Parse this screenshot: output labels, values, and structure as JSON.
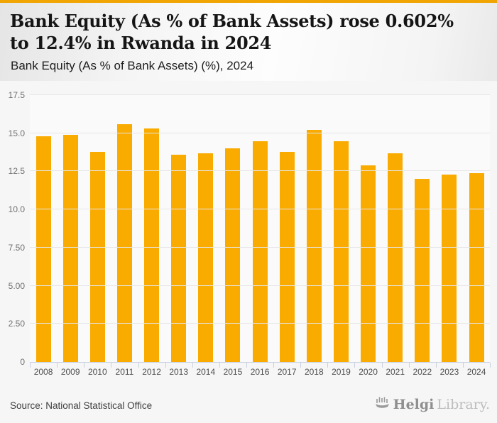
{
  "header": {
    "title": "Bank Equity (As % of Bank Assets) rose 0.602% to 12.4% in Rwanda in 2024",
    "subtitle": "Bank Equity (As % of Bank Assets) (%), 2024"
  },
  "chart_data": {
    "type": "bar",
    "title": "Bank Equity (As % of Bank Assets) (%), 2024",
    "categories": [
      "2008",
      "2009",
      "2010",
      "2011",
      "2012",
      "2013",
      "2014",
      "2015",
      "2016",
      "2017",
      "2018",
      "2019",
      "2020",
      "2021",
      "2022",
      "2023",
      "2024"
    ],
    "values": [
      14.8,
      14.9,
      13.8,
      15.6,
      15.3,
      13.6,
      13.7,
      14.0,
      14.5,
      13.8,
      15.2,
      14.5,
      12.9,
      13.7,
      12.0,
      12.3,
      12.4
    ],
    "xlabel": "",
    "ylabel": "",
    "ylim": [
      0,
      17.5
    ],
    "y_ticks": [
      {
        "value": 0,
        "label": "0"
      },
      {
        "value": 2.5,
        "label": "2.50"
      },
      {
        "value": 5,
        "label": "5.00"
      },
      {
        "value": 7.5,
        "label": "7.50"
      },
      {
        "value": 10,
        "label": "10.0"
      },
      {
        "value": 12.5,
        "label": "12.5"
      },
      {
        "value": 15,
        "label": "15.0"
      },
      {
        "value": 17.5,
        "label": "17.5"
      }
    ],
    "grid": true,
    "legend": false
  },
  "footer": {
    "source": "Source: National Statistical Office",
    "logo": {
      "name_bold": "Helgi",
      "name_light": "Library."
    }
  },
  "colors": {
    "top_strip": "#f0a502",
    "bar": "#f9ab00",
    "axis": "#c9d2e0",
    "grid": "#e6e6e6"
  }
}
